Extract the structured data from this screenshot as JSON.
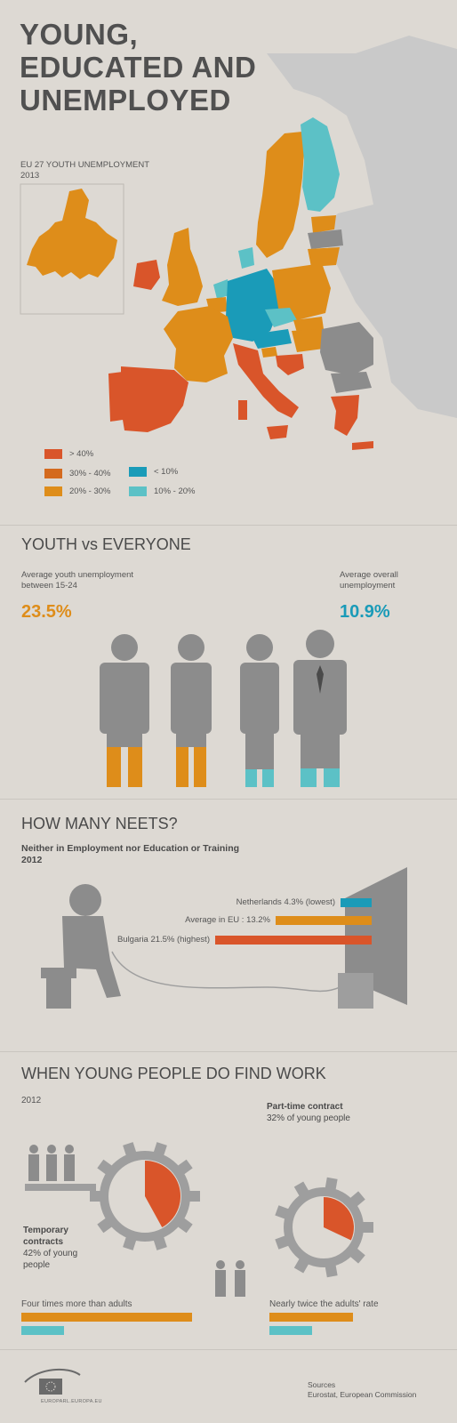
{
  "header": {
    "title_lines": [
      "YOUNG,",
      "EDUCATED AND",
      "UNEMPLOYED"
    ],
    "subtitle_lines": [
      "EU 27 YOUTH UNEMPLOYMENT",
      "2013"
    ]
  },
  "colors": {
    "background": "#ddd9d3",
    "red": "#d9552a",
    "orange": "#de8d1a",
    "blue": "#1a9bb8",
    "teal": "#5cc1c6",
    "grey": "#8c8c8c",
    "light_grey": "#c9c9c9"
  },
  "legend": {
    "items": [
      {
        "label": "> 40%",
        "color": "#d9552a"
      },
      {
        "label": "30% - 40%",
        "color": "#d46a1e"
      },
      {
        "label": "20% - 30%",
        "color": "#de8d1a"
      },
      {
        "label": "< 10%",
        "color": "#1a9bb8"
      },
      {
        "label": "10% - 20%",
        "color": "#5cc1c6"
      }
    ]
  },
  "youth_vs_everyone": {
    "title": "YOUTH vs EVERYONE",
    "youth_label_lines": [
      "Average youth unemployment",
      "between 15-24"
    ],
    "youth_value": "23.5%",
    "overall_label_lines": [
      "Average overall",
      "unemployment"
    ],
    "overall_value": "10.9%"
  },
  "neets": {
    "title": "HOW MANY NEETS?",
    "subtitle_lines": [
      "Neither in Employment nor Education or Training",
      "2012"
    ],
    "bars": [
      {
        "label": "Netherlands 4.3% (lowest)",
        "value": 4.3,
        "color": "#1a9bb8"
      },
      {
        "label": "Average in EU : 13.2%",
        "value": 13.2,
        "color": "#de8d1a"
      },
      {
        "label": "Bulgaria 21.5% (highest)",
        "value": 21.5,
        "color": "#d9552a"
      }
    ]
  },
  "work": {
    "title": "WHEN YOUNG PEOPLE DO FIND WORK",
    "year": "2012",
    "temporary": {
      "heading_lines": [
        "Temporary",
        "contracts"
      ],
      "detail_lines": [
        "42% of young",
        "people"
      ],
      "share": 42,
      "note": "Four times more than adults"
    },
    "part_time": {
      "heading": "Part-time contract",
      "detail": "32% of young people",
      "share": 32,
      "note": "Nearly twice the adults' rate"
    }
  },
  "footer": {
    "logo_text": "EUROPARL.EUROPA.EU",
    "sources_lines": [
      "Sources",
      "Eurostat, European Commission"
    ]
  }
}
